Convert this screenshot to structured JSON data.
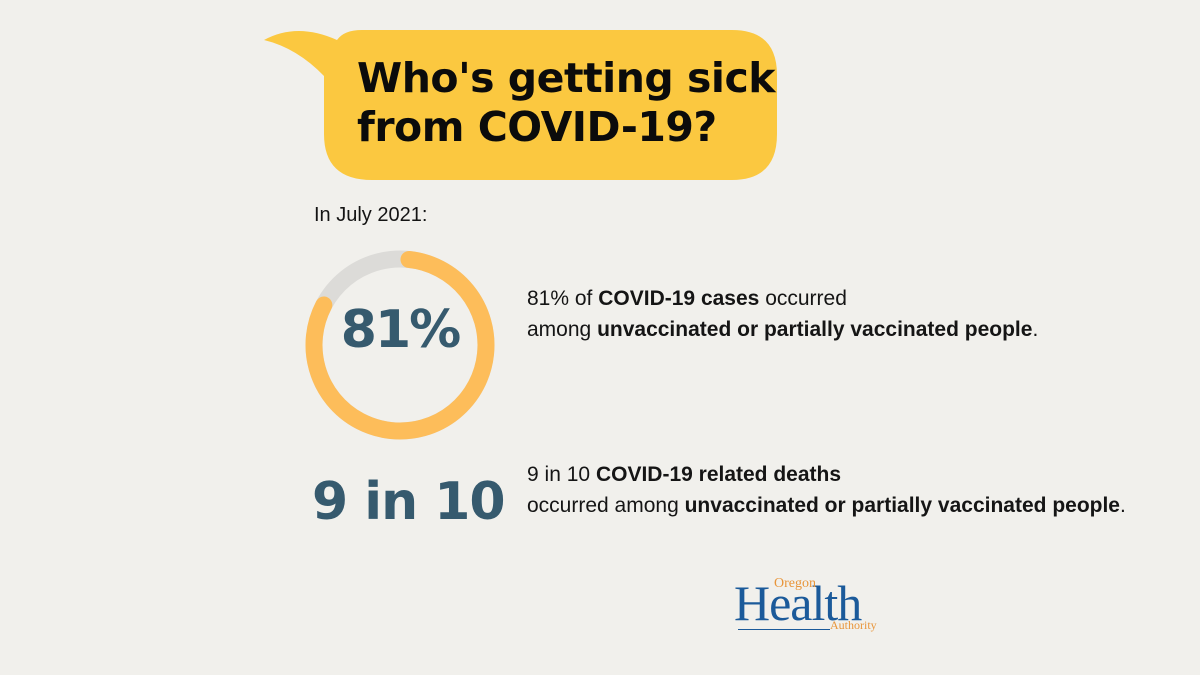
{
  "header": {
    "title_line1": "Who's getting sick",
    "title_line2": "from COVID-19?",
    "bubble_color": "#fbc840"
  },
  "subhead": "In July 2021:",
  "stats": [
    {
      "value": "81%",
      "percent": 81,
      "text_parts": [
        {
          "t": "81% of ",
          "b": false
        },
        {
          "t": "COVID-19 cases",
          "b": true
        },
        {
          "t": " occurred among ",
          "b": false
        },
        {
          "t": "unvaccinated or partially vaccinated people",
          "b": true
        },
        {
          "t": ".",
          "b": false
        }
      ],
      "ring_color": "#fdbd5a",
      "track_color": "#dcdbd8"
    },
    {
      "value": "9 in 10",
      "text_parts": [
        {
          "t": "9 in 10 ",
          "b": false
        },
        {
          "t": "COVID-19 related deaths",
          "b": true
        },
        {
          "t": " occurred among ",
          "b": false
        },
        {
          "t": "unvaccinated or partially vaccinated people",
          "b": true
        },
        {
          "t": ".",
          "b": false
        }
      ]
    }
  ],
  "logo": {
    "oregon": "Oregon",
    "health": "Health",
    "authority": "Authority"
  },
  "colors": {
    "background": "#f1f0ec",
    "stat_number": "#365a6e",
    "logo_blue": "#1b5a9a",
    "logo_orange": "#e8953a"
  }
}
